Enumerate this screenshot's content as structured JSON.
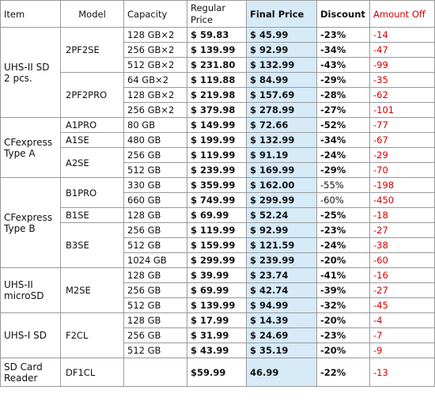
{
  "header": {
    "item": "Item",
    "model": "Model",
    "capacity": "Capacity",
    "regular_price": "Regular Price",
    "final_price": "Final Price",
    "discount": "Discount",
    "amount_off": "Amount Off"
  },
  "groups": [
    {
      "item": "UHS-II SD 2 pcs.",
      "models": [
        {
          "model": "2PF2SE",
          "rows": [
            {
              "capacity": "128 GB×2",
              "regular": "$ 59.83",
              "final": "$ 45.99",
              "discount": "-23%",
              "amount_off": "-14"
            },
            {
              "capacity": "256 GB×2",
              "regular": "$ 139.99",
              "final": "$ 92.99",
              "discount": "-34%",
              "amount_off": "-47"
            },
            {
              "capacity": "512 GB×2",
              "regular": "$ 231.80",
              "final": "$ 132.99",
              "discount": "-43%",
              "amount_off": "-99"
            }
          ]
        },
        {
          "model": "2PF2PRO",
          "rows": [
            {
              "capacity": "64 GB×2",
              "regular": "$ 119.88",
              "final": "$ 84.99",
              "discount": "-29%",
              "amount_off": "-35"
            },
            {
              "capacity": "128 GB×2",
              "regular": "$ 219.98",
              "final": "$ 157.69",
              "discount": "-28%",
              "amount_off": "-62"
            },
            {
              "capacity": "256 GB×2",
              "regular": "$ 379.98",
              "final": "$ 278.99",
              "discount": "-27%",
              "amount_off": "-101"
            }
          ]
        }
      ]
    },
    {
      "item": "CFexpress Type A",
      "models": [
        {
          "model": "A1PRO",
          "rows": [
            {
              "capacity": "80 GB",
              "regular": "$ 149.99",
              "final": "$ 72.66",
              "discount": "-52%",
              "amount_off": "-77"
            }
          ]
        },
        {
          "model": "A1SE",
          "rows": [
            {
              "capacity": "480 GB",
              "regular": "$ 199.99",
              "final": "$ 132.99",
              "discount": "-34%",
              "amount_off": "-67"
            }
          ]
        },
        {
          "model": "A2SE",
          "rows": [
            {
              "capacity": "256 GB",
              "regular": "$ 119.99",
              "final": "$ 91.19",
              "discount": "-24%",
              "amount_off": "-29"
            },
            {
              "capacity": "512 GB",
              "regular": "$ 239.99",
              "final": "$ 169.99",
              "discount": "-29%",
              "amount_off": "-70"
            }
          ]
        }
      ]
    },
    {
      "item": "CFexpress Type B",
      "models": [
        {
          "model": "B1PRO",
          "rows": [
            {
              "capacity": "330 GB",
              "regular": "$ 359.99",
              "final": "$ 162.00",
              "discount": "-55%",
              "discount_bold": false,
              "amount_off": "-198"
            },
            {
              "capacity": "660 GB",
              "regular": "$ 749.99",
              "final": "$ 299.99",
              "discount": "-60%",
              "discount_bold": false,
              "amount_off": "-450"
            }
          ]
        },
        {
          "model": "B1SE",
          "rows": [
            {
              "capacity": "128 GB",
              "regular": "$ 69.99",
              "final": "$ 52.24",
              "discount": "-25%",
              "amount_off": "-18"
            }
          ]
        },
        {
          "model": "B3SE",
          "rows": [
            {
              "capacity": "256 GB",
              "regular": "$ 119.99",
              "final": "$ 92.99",
              "discount": "-23%",
              "amount_off": "-27"
            },
            {
              "capacity": "512 GB",
              "regular": "$ 159.99",
              "final": "$ 121.59",
              "discount": "-24%",
              "amount_off": "-38"
            },
            {
              "capacity": "1024 GB",
              "regular": "$ 299.99",
              "final": "$ 239.99",
              "discount": "-20%",
              "amount_off": "-60"
            }
          ]
        }
      ]
    },
    {
      "item": "UHS-II microSD",
      "models": [
        {
          "model": "M2SE",
          "rows": [
            {
              "capacity": "128 GB",
              "regular": "$ 39.99",
              "final": "$ 23.74",
              "discount": "-41%",
              "amount_off": "-16"
            },
            {
              "capacity": "256 GB",
              "regular": "$ 69.99",
              "final": "$ 42.74",
              "discount": "-39%",
              "amount_off": "-27"
            },
            {
              "capacity": "512 GB",
              "regular": "$ 139.99",
              "final": "$ 94.99",
              "discount": "-32%",
              "amount_off": "-45"
            }
          ]
        }
      ]
    },
    {
      "item": "UHS-I SD",
      "models": [
        {
          "model": "F2CL",
          "rows": [
            {
              "capacity": "128 GB",
              "regular": "$ 17.99",
              "final": "$ 14.39",
              "discount": "-20%",
              "amount_off": "-4"
            },
            {
              "capacity": "256 GB",
              "regular": "$ 31.99",
              "final": "$ 24.69",
              "discount": "-23%",
              "amount_off": "-7"
            },
            {
              "capacity": "512 GB",
              "regular": "$ 43.99",
              "final": "$ 35.19",
              "discount": "-20%",
              "amount_off": "-9"
            }
          ]
        }
      ]
    },
    {
      "item": "SD Card Reader",
      "tall": true,
      "models": [
        {
          "model": "DF1CL",
          "rows": [
            {
              "capacity": "",
              "regular": "$59.99",
              "final": "46.99",
              "discount": "-22%",
              "amount_off": "-13"
            }
          ]
        }
      ]
    }
  ],
  "colors": {
    "final_price_bg": "#d6eaf8",
    "amount_off_text": "#d10000",
    "border": "#9a9a9a"
  }
}
